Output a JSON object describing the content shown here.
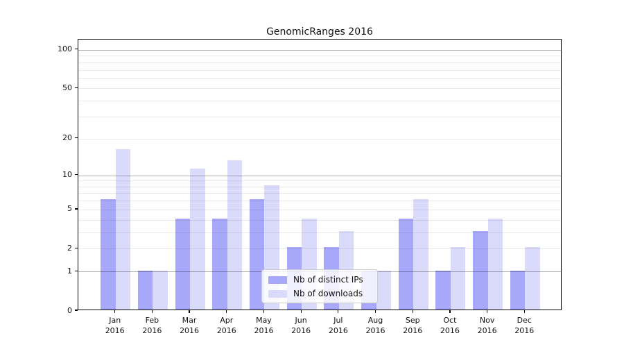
{
  "chart_data": {
    "type": "bar",
    "title": "GenomicRanges 2016",
    "x_months": [
      "Jan",
      "Feb",
      "Mar",
      "Apr",
      "May",
      "Jun",
      "Jul",
      "Aug",
      "Sep",
      "Oct",
      "Nov",
      "Dec"
    ],
    "x_year": "2016",
    "series": [
      {
        "name": "Nb of distinct IPs",
        "color": "#a8a8fa",
        "values": [
          6,
          1,
          4,
          4,
          6,
          2,
          2,
          1,
          4,
          1,
          3,
          1
        ]
      },
      {
        "name": "Nb of downloads",
        "color": "#dadafb",
        "values": [
          16,
          1,
          11,
          13,
          8,
          4,
          3,
          1,
          6,
          2,
          4,
          2
        ]
      }
    ],
    "yscale": "log10(1+y)",
    "ylim": [
      0,
      120
    ],
    "ytick_labels": [
      "0",
      "1",
      "2",
      "5",
      "10",
      "20",
      "50",
      "100"
    ],
    "ytick_values": [
      0,
      1,
      2,
      5,
      10,
      20,
      50,
      100
    ],
    "grid_major_values": [
      1,
      10,
      100
    ],
    "grid_minor_values": [
      2,
      3,
      4,
      5,
      6,
      7,
      8,
      9,
      20,
      30,
      40,
      50,
      60,
      70,
      80,
      90
    ],
    "grid": "on",
    "legend_position": "lower-center"
  }
}
